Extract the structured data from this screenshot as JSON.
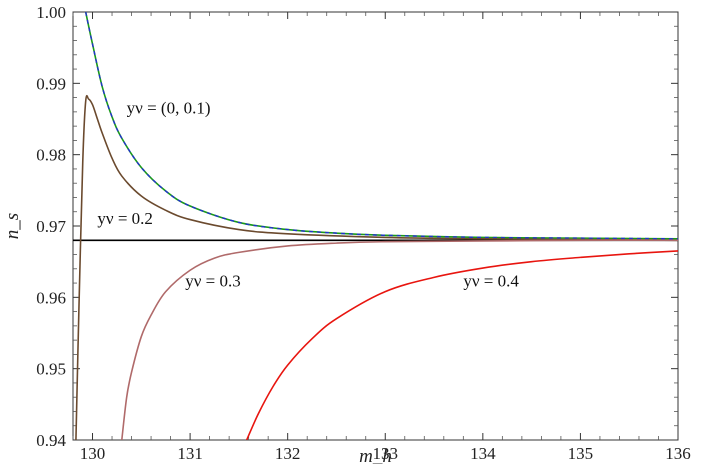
{
  "chart_data": {
    "type": "line",
    "title": "",
    "xlabel": "m_h",
    "ylabel": "n_s",
    "xlim": [
      129.8,
      136
    ],
    "ylim": [
      0.94,
      1.0
    ],
    "grid": false,
    "xticks": [
      130,
      131,
      132,
      133,
      134,
      135,
      136
    ],
    "yticks": [
      0.94,
      0.95,
      0.96,
      0.97,
      0.98,
      0.99,
      1.0
    ],
    "xtick_labels": [
      "130",
      "131",
      "132",
      "133",
      "134",
      "135",
      "136"
    ],
    "ytick_labels": [
      "0.94",
      "0.95",
      "0.96",
      "0.97",
      "0.98",
      "0.99",
      "1.00"
    ],
    "reference_line": {
      "y": 0.968,
      "color": "#000000"
    },
    "series": [
      {
        "color": "#1a9a1a",
        "style": "solid",
        "x": [
          129.93,
          130.0,
          130.1,
          130.2,
          130.3,
          130.5,
          130.75,
          131.0,
          131.5,
          132.0,
          132.5,
          133.0,
          134.0,
          135.0,
          136.0
        ],
        "y": [
          1.0,
          0.9955,
          0.9895,
          0.9853,
          0.9823,
          0.9782,
          0.9749,
          0.9728,
          0.9705,
          0.9695,
          0.969,
          0.9687,
          0.9684,
          0.9683,
          0.9682
        ]
      },
      {
        "color": "#2233cc",
        "style": "dashed",
        "x": [
          129.93,
          130.0,
          130.1,
          130.2,
          130.3,
          130.5,
          130.75,
          131.0,
          131.5,
          132.0,
          132.5,
          133.0,
          134.0,
          135.0,
          136.0
        ],
        "y": [
          1.0,
          0.9955,
          0.9895,
          0.9853,
          0.9823,
          0.9782,
          0.9749,
          0.9728,
          0.9705,
          0.9695,
          0.969,
          0.9687,
          0.9684,
          0.9683,
          0.9682
        ]
      },
      {
        "color": "#6b4a2e",
        "style": "solid",
        "x": [
          129.83,
          129.86,
          129.9,
          129.93,
          129.96,
          130.0,
          130.05,
          130.1,
          130.2,
          130.3,
          130.5,
          130.75,
          131.0,
          131.5,
          132.0,
          133.0,
          134.0,
          135.0,
          136.0
        ],
        "y": [
          0.94,
          0.958,
          0.979,
          0.9875,
          0.9878,
          0.987,
          0.985,
          0.983,
          0.9795,
          0.977,
          0.9742,
          0.9722,
          0.9709,
          0.9695,
          0.9689,
          0.9684,
          0.9682,
          0.9681,
          0.968
        ]
      },
      {
        "color": "#b06a6a",
        "style": "solid",
        "x": [
          130.3,
          130.35,
          130.4,
          130.5,
          130.6,
          130.75,
          131.0,
          131.25,
          131.5,
          132.0,
          132.5,
          133.0,
          134.0,
          135.0,
          136.0
        ],
        "y": [
          0.94,
          0.946,
          0.9495,
          0.9545,
          0.9575,
          0.9608,
          0.9638,
          0.9655,
          0.9663,
          0.9672,
          0.9676,
          0.9678,
          0.9679,
          0.968,
          0.968
        ]
      },
      {
        "color": "#e8150f",
        "style": "solid",
        "x": [
          131.58,
          131.7,
          131.85,
          132.0,
          132.25,
          132.5,
          133.0,
          133.5,
          134.0,
          134.5,
          135.0,
          135.5,
          136.0
        ],
        "y": [
          0.94,
          0.9437,
          0.9475,
          0.9505,
          0.9542,
          0.957,
          0.9608,
          0.9628,
          0.9641,
          0.965,
          0.9656,
          0.9661,
          0.9665
        ]
      }
    ],
    "annotations": [
      {
        "text": "yν = (0, 0.1)",
        "x": 130.35,
        "y": 0.9858
      },
      {
        "text": "yν = 0.2",
        "x": 130.05,
        "y": 0.9703
      },
      {
        "text": "yν = 0.3",
        "x": 130.95,
        "y": 0.9615
      },
      {
        "text": "yν = 0.4",
        "x": 133.8,
        "y": 0.9615
      }
    ]
  }
}
